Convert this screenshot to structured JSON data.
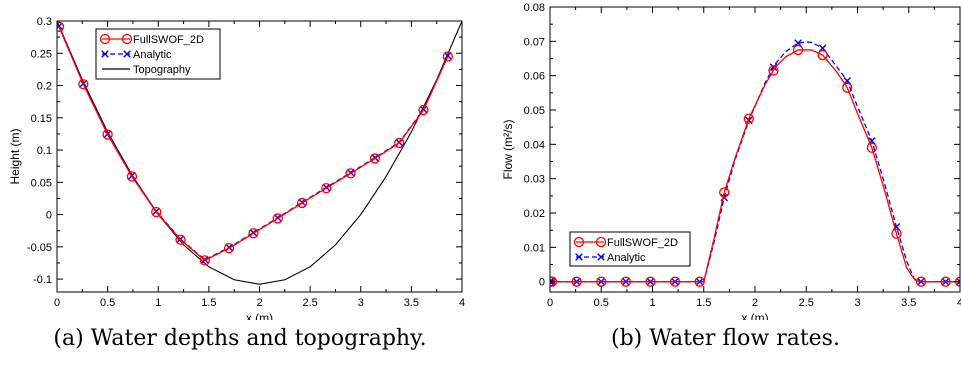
{
  "chart_data": [
    {
      "type": "line",
      "caption": "(a) Water depths and topography.",
      "xlabel": "x (m)",
      "ylabel": "Height (m)",
      "xlim": [
        0,
        4
      ],
      "ylim": [
        -0.12,
        0.3
      ],
      "xticks": [
        0,
        0.5,
        1,
        1.5,
        2,
        2.5,
        3,
        3.5,
        4
      ],
      "xtick_labels": [
        "0",
        "0.5",
        "1",
        "1.5",
        "2",
        "2.5",
        "3",
        "3.5",
        "4"
      ],
      "yticks": [
        -0.1,
        -0.05,
        0,
        0.05,
        0.1,
        0.15,
        0.2,
        0.25,
        0.3
      ],
      "ytick_labels": [
        "-0.1",
        "-0.05",
        "0",
        "0.05",
        "0.1",
        "0.15",
        "0.2",
        "0.25",
        "0.3"
      ],
      "grid": false,
      "legend": "top-left",
      "series": [
        {
          "name": "FullSWOF_2D",
          "color": "#ff0000",
          "style": "solid-circle-markers",
          "x": [
            0.02,
            0.26,
            0.5,
            0.74,
            0.98,
            1.22,
            1.46,
            1.7,
            1.94,
            2.18,
            2.42,
            2.66,
            2.9,
            3.14,
            3.38,
            3.62,
            3.86
          ],
          "y": [
            0.291,
            0.202,
            0.124,
            0.059,
            0.004,
            -0.039,
            -0.071,
            -0.052,
            -0.029,
            -0.006,
            0.018,
            0.041,
            0.064,
            0.087,
            0.111,
            0.162,
            0.245
          ]
        },
        {
          "name": "Analytic",
          "color": "#0000ff",
          "style": "dashed-x-markers",
          "x": [
            0.02,
            0.26,
            0.5,
            0.74,
            0.98,
            1.22,
            1.46,
            1.7,
            1.94,
            2.18,
            2.42,
            2.66,
            2.9,
            3.14,
            3.38,
            3.62,
            3.86
          ],
          "y": [
            0.292,
            0.203,
            0.125,
            0.06,
            0.005,
            -0.038,
            -0.07,
            -0.051,
            -0.028,
            -0.005,
            0.019,
            0.042,
            0.065,
            0.088,
            0.112,
            0.163,
            0.246
          ]
        },
        {
          "name": "Topography",
          "color": "#000000",
          "style": "solid",
          "x": [
            0,
            0.25,
            0.5,
            0.75,
            1,
            1.25,
            1.5,
            1.75,
            2,
            2.25,
            2.5,
            2.75,
            3,
            3.25,
            3.5,
            3.75,
            4
          ],
          "y": [
            0.3,
            0.209,
            0.128,
            0.059,
            0,
            -0.047,
            -0.081,
            -0.101,
            -0.108,
            -0.101,
            -0.081,
            -0.047,
            0,
            0.059,
            0.128,
            0.209,
            0.3
          ]
        }
      ]
    },
    {
      "type": "line",
      "caption": "(b) Water flow rates.",
      "xlabel": "x (m)",
      "ylabel": "Flow (m²/s)",
      "xlim": [
        0,
        4
      ],
      "ylim": [
        -0.003,
        0.08
      ],
      "xticks": [
        0,
        0.5,
        1,
        1.5,
        2,
        2.5,
        3,
        3.5,
        4
      ],
      "xtick_labels": [
        "0",
        "0.5",
        "1",
        "1.5",
        "2",
        "2.5",
        "3",
        "3.5",
        "4"
      ],
      "yticks": [
        0,
        0.01,
        0.02,
        0.03,
        0.04,
        0.05,
        0.06,
        0.07,
        0.08
      ],
      "ytick_labels": [
        "0",
        "0.01",
        "0.02",
        "0.03",
        "0.04",
        "0.05",
        "0.06",
        "0.07",
        "0.08"
      ],
      "grid": false,
      "legend": "bottom-left",
      "series": [
        {
          "name": "FullSWOF_2D",
          "color": "#ff0000",
          "style": "solid-circle-markers",
          "x": [
            0,
            0.02,
            0.26,
            0.5,
            0.74,
            0.98,
            1.22,
            1.46,
            1.7,
            1.94,
            2.18,
            2.42,
            2.66,
            2.9,
            3.14,
            3.38,
            3.62,
            3.86,
            4
          ],
          "y": [
            0,
            0,
            0,
            0,
            0,
            0,
            0,
            0,
            0.026,
            0.0475,
            0.0615,
            0.0675,
            0.066,
            0.0565,
            0.039,
            0.014,
            0,
            0,
            0
          ],
          "line_x": [
            0,
            1.46,
            1.5,
            1.6,
            1.7,
            1.8,
            1.94,
            2.1,
            2.2,
            2.3,
            2.42,
            2.55,
            2.66,
            2.8,
            2.9,
            3.0,
            3.14,
            3.26,
            3.38,
            3.48,
            3.56,
            3.62,
            4
          ],
          "line_y": [
            0,
            0,
            0,
            0.0125,
            0.026,
            0.0355,
            0.0475,
            0.0575,
            0.0625,
            0.0655,
            0.0675,
            0.0675,
            0.066,
            0.061,
            0.0565,
            0.049,
            0.039,
            0.027,
            0.014,
            0.004,
            0.0005,
            0,
            0
          ]
        },
        {
          "name": "Analytic",
          "color": "#0000ff",
          "style": "dashed-x-markers",
          "x": [
            0,
            0.02,
            0.26,
            0.5,
            0.74,
            0.98,
            1.22,
            1.46,
            1.7,
            1.94,
            2.18,
            2.42,
            2.66,
            2.9,
            3.14,
            3.38,
            3.62,
            3.86,
            4
          ],
          "y": [
            0,
            0,
            0,
            0,
            0,
            0,
            0,
            0,
            0.0245,
            0.047,
            0.0625,
            0.0695,
            0.068,
            0.0585,
            0.041,
            0.016,
            0,
            0,
            0
          ],
          "line_x": [
            0,
            1.46,
            1.5,
            1.6,
            1.7,
            1.8,
            1.94,
            2.1,
            2.2,
            2.3,
            2.42,
            2.5,
            2.55,
            2.66,
            2.8,
            2.9,
            3.0,
            3.14,
            3.26,
            3.38,
            3.48,
            3.55,
            3.6,
            4
          ],
          "line_y": [
            0,
            0,
            0,
            0.0115,
            0.0245,
            0.035,
            0.047,
            0.058,
            0.0635,
            0.067,
            0.0695,
            0.0698,
            0.0697,
            0.068,
            0.0625,
            0.0585,
            0.051,
            0.041,
            0.029,
            0.016,
            0.006,
            0.001,
            0,
            0
          ]
        }
      ]
    }
  ]
}
